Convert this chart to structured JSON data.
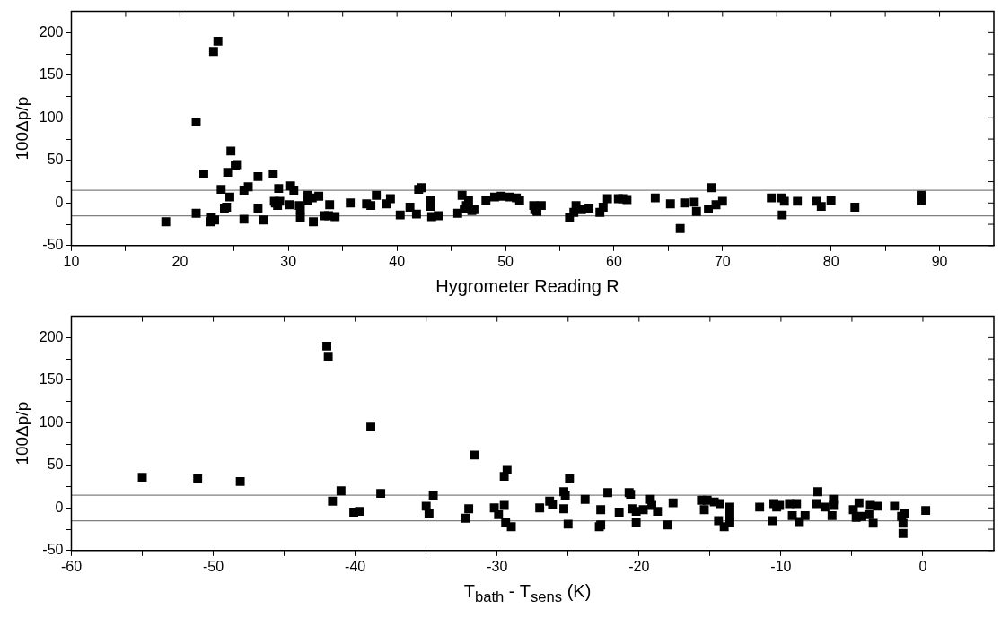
{
  "chart_data": [
    {
      "type": "scatter",
      "xlabel": "Hygrometer Reading R",
      "ylabel": "100Δp/p",
      "marker": "square",
      "xlim": [
        10,
        95
      ],
      "ylim": [
        -50,
        225
      ],
      "xticks": [
        10,
        {
          "value": 15,
          "label": null
        },
        20,
        {
          "value": 25,
          "label": null
        },
        30,
        {
          "value": 35,
          "label": null
        },
        40,
        {
          "value": 45,
          "label": null
        },
        50,
        {
          "value": 55,
          "label": null
        },
        60,
        {
          "value": 65,
          "label": null
        },
        70,
        {
          "value": 75,
          "label": null
        },
        80,
        {
          "value": 85,
          "label": null
        },
        90
      ],
      "yticks": [
        -50,
        {
          "value": -25,
          "label": null
        },
        0,
        {
          "value": 25,
          "label": null
        },
        50,
        {
          "value": 75,
          "label": null
        },
        100,
        {
          "value": 125,
          "label": null
        },
        150,
        {
          "value": 175,
          "label": null
        },
        200
      ],
      "ref_lines": [
        {
          "axis": "y",
          "value": 15,
          "color": "#808080"
        },
        {
          "axis": "y",
          "value": -15,
          "color": "#808080"
        }
      ],
      "series": [
        {
          "color": "#000000",
          "x": [
            18.7,
            21.5,
            21.5,
            22.2,
            22.8,
            22.9,
            23.1,
            23.5,
            23.2,
            23.8,
            24.1,
            24.3,
            24.4,
            24.6,
            24.7,
            25.1,
            25.3,
            25.9,
            25.9,
            26.3,
            27.2,
            27.2,
            27.7,
            28.6,
            28.7,
            28.8,
            29.0,
            29.2,
            29.1,
            30.1,
            30.2,
            30.5,
            31.0,
            31.1,
            31.1,
            31.8,
            31.8,
            32.2,
            32.3,
            32.8,
            33.3,
            33.7,
            33.8,
            34.3,
            35.7,
            37.2,
            37.6,
            38.1,
            39.0,
            39.4,
            40.3,
            41.2,
            41.8,
            42.0,
            42.3,
            43.1,
            43.1,
            43.2,
            43.8,
            45.6,
            46.2,
            46.0,
            46.4,
            46.6,
            46.9,
            47.1,
            48.2,
            49.0,
            49.6,
            50.4,
            51.0,
            51.3,
            52.6,
            52.7,
            52.9,
            53.3,
            55.9,
            56.3,
            56.5,
            57.0,
            57.7,
            58.7,
            59.0,
            59.4,
            60.4,
            60.8,
            61.2,
            63.8,
            65.2,
            66.5,
            66.1,
            67.4,
            67.6,
            68.7,
            69.0,
            69.4,
            70.0,
            74.5,
            75.4,
            75.5,
            75.7,
            76.9,
            78.7,
            79.1,
            80.0,
            82.2,
            88.3,
            88.3
          ],
          "values": [
            -22,
            95,
            -12,
            34,
            -22,
            -17,
            178,
            190,
            -20,
            16,
            -6,
            -5,
            36,
            7,
            61,
            44,
            45,
            -19,
            15,
            19,
            31,
            -6,
            -20,
            34,
            2,
            0,
            -3,
            2,
            17,
            -2,
            20,
            15,
            -3,
            -8,
            -17,
            3,
            9,
            6,
            -22,
            8,
            -15,
            -15,
            -2,
            -16,
            0,
            -1,
            -3,
            9,
            -1,
            5,
            -14,
            -5,
            -13,
            16,
            18,
            3,
            -4,
            -16,
            -15,
            -12,
            -7,
            9,
            -3,
            3,
            -9,
            -8,
            3,
            7,
            8,
            7,
            6,
            3,
            -3,
            -8,
            -10,
            -3,
            -17,
            -11,
            -3,
            -8,
            -6,
            -11,
            -5,
            5,
            5,
            5,
            4,
            6,
            -1,
            0,
            -30,
            1,
            -10,
            -7,
            18,
            -2,
            2,
            6,
            6,
            -14,
            2,
            2,
            2,
            -4,
            3,
            -5,
            9,
            3
          ]
        }
      ]
    },
    {
      "type": "scatter",
      "xlabel": "T$_{bath}$ - T$_{sens}$ (K)",
      "ylabel": "100Δp/p",
      "marker": "square",
      "xlim": [
        -60,
        5
      ],
      "ylim": [
        -50,
        225
      ],
      "xticks": [
        -60,
        {
          "value": -55,
          "label": null
        },
        -50,
        {
          "value": -45,
          "label": null
        },
        -40,
        {
          "value": -35,
          "label": null
        },
        -30,
        {
          "value": -25,
          "label": null
        },
        -20,
        {
          "value": -15,
          "label": null
        },
        -10,
        {
          "value": -5,
          "label": null
        },
        0
      ],
      "yticks": [
        -50,
        {
          "value": -25,
          "label": null
        },
        0,
        {
          "value": 25,
          "label": null
        },
        50,
        {
          "value": 75,
          "label": null
        },
        100,
        {
          "value": 125,
          "label": null
        },
        150,
        {
          "value": 175,
          "label": null
        },
        200
      ],
      "ref_lines": [
        {
          "axis": "y",
          "value": 15,
          "color": "#808080"
        },
        {
          "axis": "y",
          "value": -15,
          "color": "#808080"
        }
      ],
      "series": [
        {
          "color": "#000000",
          "x": [
            -55.0,
            -51.1,
            -48.1,
            -42.0,
            -41.9,
            -41.0,
            -41.6,
            -38.9,
            -38.2,
            -40.1,
            -39.7,
            -35.0,
            -34.8,
            -34.5,
            -31.6,
            -32.0,
            -32.2,
            -30.2,
            -29.9,
            -29.5,
            -29.3,
            -29.5,
            -29.4,
            -29.0,
            -27.0,
            -26.3,
            -26.1,
            -25.3,
            -25.2,
            -25.3,
            -24.9,
            -25.0,
            -23.8,
            -22.7,
            -22.8,
            -22.7,
            -22.2,
            -21.4,
            -20.7,
            -20.6,
            -20.5,
            -20.2,
            -20.2,
            -19.7,
            -19.2,
            -19.1,
            -18.7,
            -18.0,
            -17.6,
            -15.6,
            -15.4,
            -15.2,
            -14.7,
            -14.3,
            -14.4,
            -14.0,
            -13.6,
            -13.6,
            -13.6,
            -11.5,
            -10.6,
            -10.5,
            -10.3,
            -10.1,
            -9.4,
            -8.9,
            -9.2,
            -8.7,
            -8.3,
            -7.4,
            -7.5,
            -6.9,
            -6.3,
            -6.4,
            -6.3,
            -4.9,
            -4.7,
            -4.5,
            -4.3,
            -3.7,
            -3.5,
            -3.2,
            -3.8,
            -2.0,
            -1.5,
            -1.4,
            -1.3,
            -1.4,
            0.2
          ],
          "values": [
            36,
            34,
            31,
            190,
            178,
            20,
            8,
            95,
            17,
            -5,
            -4,
            2,
            -6,
            15,
            62,
            -1,
            -12,
            0,
            -8,
            3,
            45,
            37,
            -17,
            -22,
            0,
            8,
            4,
            19,
            15,
            -1,
            34,
            -19,
            10,
            -2,
            -22,
            -20,
            18,
            -5,
            18,
            16,
            -1,
            -17,
            -4,
            -2,
            10,
            3,
            -4,
            -20,
            6,
            9,
            -2,
            9,
            7,
            5,
            -15,
            -22,
            1,
            -9,
            -17,
            1,
            -15,
            5,
            1,
            3,
            5,
            5,
            -9,
            -16,
            -9,
            19,
            5,
            1,
            10,
            -9,
            3,
            -2,
            -11,
            6,
            -10,
            3,
            -18,
            2,
            -8,
            2,
            -10,
            -18,
            -6,
            -30,
            -3
          ]
        }
      ]
    }
  ]
}
